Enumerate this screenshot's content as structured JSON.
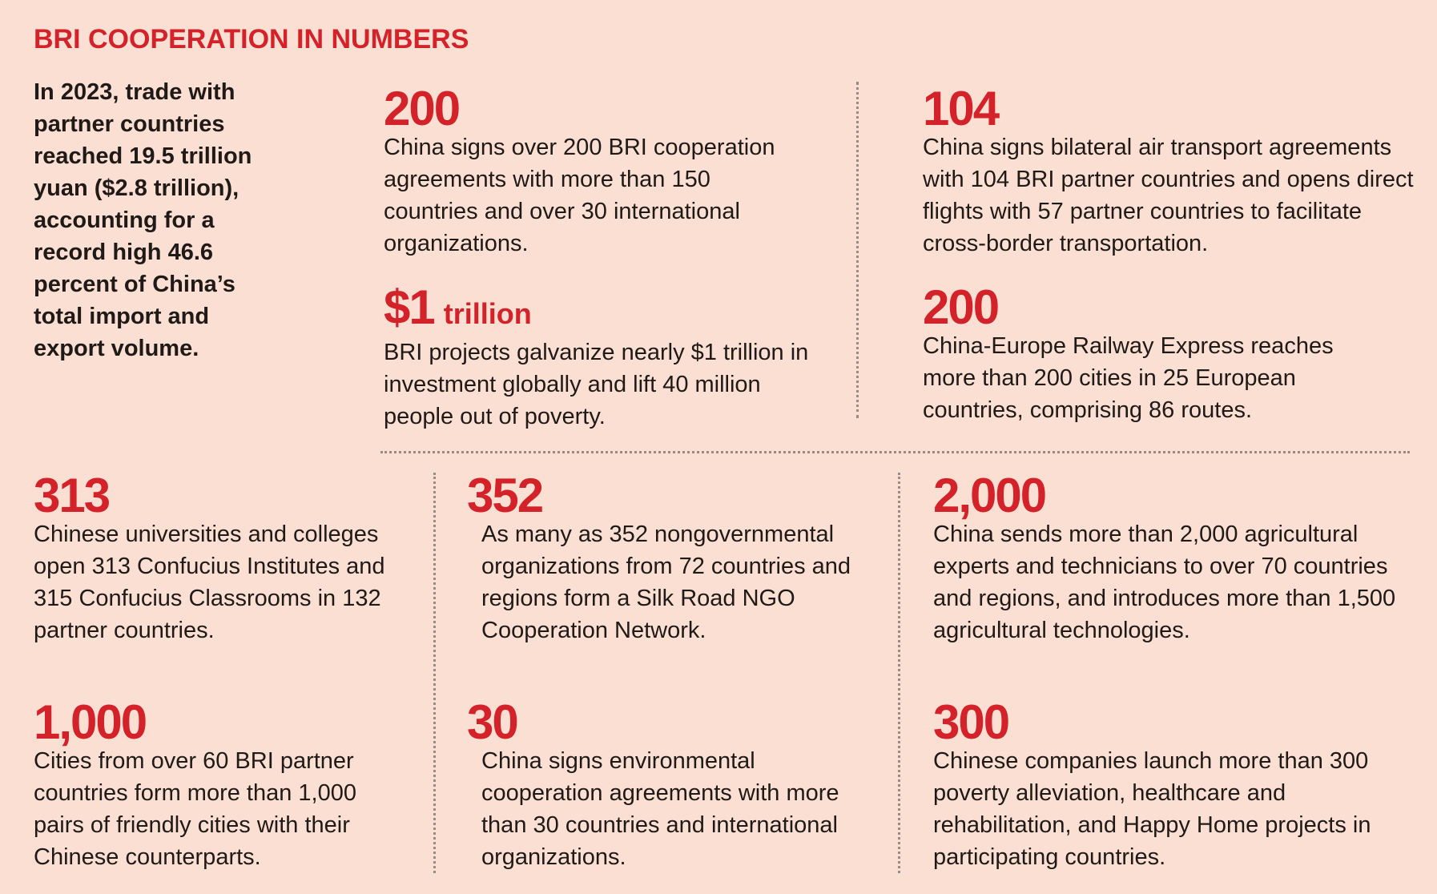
{
  "title": "BRI COOPERATION IN NUMBERS",
  "intro": "In 2023, trade with partner countries reached 19.5 trillion yuan ($2.8 trillion), accounting for a record high 46.6 percent of China’s total import and export volume.",
  "stats": [
    {
      "number": "200",
      "description": "China signs over 200 BRI cooperation agreements with more than 150 countries and over 30 international organizations."
    },
    {
      "number": "104",
      "description": "China signs bilateral air transport agreements with 104 BRI partner countries and opens direct flights with 57 partner countries to facilitate cross-border transportation."
    },
    {
      "number": "$1",
      "unit": "trillion",
      "description": "BRI projects galvanize nearly $1 trillion in investment globally and lift 40 million people out of poverty."
    },
    {
      "number": "200",
      "description": "China-Europe Railway Express reaches more than 200 cities in 25 European countries, comprising 86 routes."
    },
    {
      "number": "313",
      "description": "Chinese universities and colleges open 313 Confucius Institutes and 315 Confucius Classrooms in 132 partner countries."
    },
    {
      "number": "352",
      "description": "As many as 352 nongovernmental organizations from 72 countries and regions form a Silk Road NGO Cooperation Network."
    },
    {
      "number": "2,000",
      "description": "China sends more than 2,000 agricultural experts and technicians to over 70 countries and regions, and introduces more than 1,500 agricultural technologies."
    },
    {
      "number": "1,000",
      "description": "Cities from over 60 BRI partner countries form more than 1,000 pairs of friendly cities with their Chinese counterparts."
    },
    {
      "number": "30",
      "description": "China signs environmental cooperation agreements with more than 30 countries and international organizations."
    },
    {
      "number": "300",
      "description": "Chinese companies launch more than 300 poverty alleviation, healthcare and rehabilitation, and Happy Home projects in participating countries."
    }
  ],
  "colors": {
    "background": "#fcdfd3",
    "accent": "#d3222a",
    "text": "#1f1a17",
    "divider": "#9a8a84"
  }
}
